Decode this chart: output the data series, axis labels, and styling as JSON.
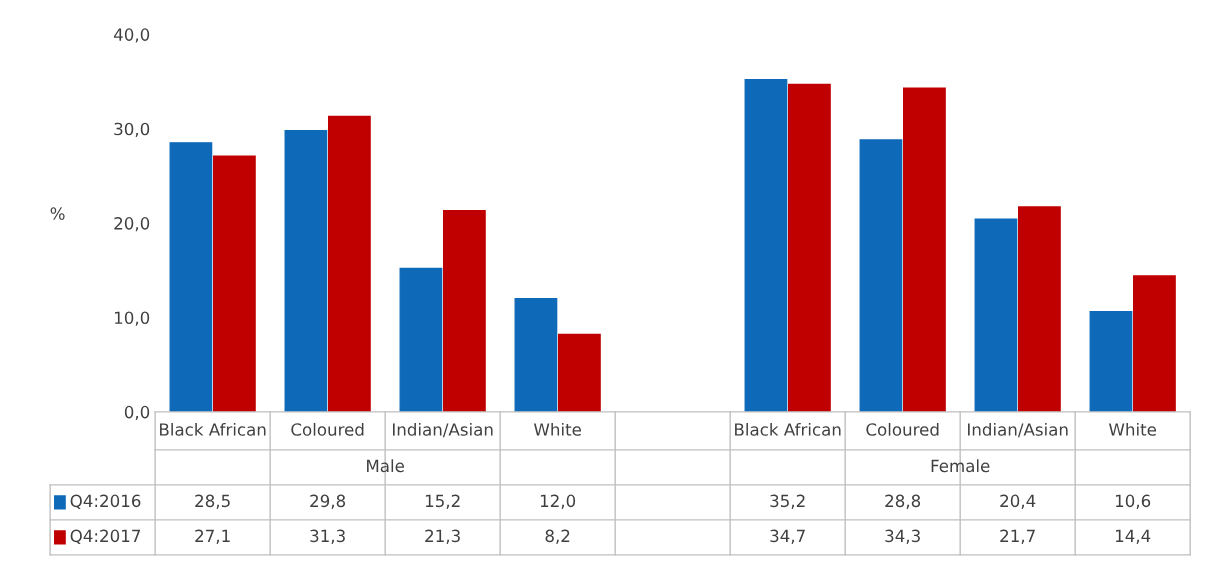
{
  "chart_data": {
    "type": "bar",
    "ylabel": "%",
    "categories": [
      "Black African",
      "Coloured",
      "Indian/Asian",
      "White",
      null,
      "Black African",
      "Coloured",
      "Indian/Asian",
      "White"
    ],
    "series": [
      {
        "name": "Q4:2016",
        "color": "#0e6ab8",
        "values": [
          28.5,
          29.8,
          15.2,
          12.0,
          null,
          35.2,
          28.8,
          20.4,
          10.6
        ],
        "value_labels": [
          "28,5",
          "29,8",
          "15,2",
          "12,0",
          null,
          "35,2",
          "28,8",
          "20,4",
          "10,6"
        ]
      },
      {
        "name": "Q4:2017",
        "color": "#c00000",
        "values": [
          27.1,
          31.3,
          21.3,
          8.2,
          null,
          34.7,
          34.3,
          21.7,
          14.4
        ],
        "value_labels": [
          "27,1",
          "31,3",
          "21,3",
          "8,2",
          null,
          "34,7",
          "34,3",
          "21,7",
          "14,4"
        ]
      }
    ],
    "annotations": [
      "Male",
      "Female"
    ],
    "ylim": [
      0,
      40
    ],
    "yticks": [
      {
        "value": 0,
        "label": "0,0"
      },
      {
        "value": 10,
        "label": "10,0"
      },
      {
        "value": 20,
        "label": "20,0"
      },
      {
        "value": 30,
        "label": "30,0"
      },
      {
        "value": 40,
        "label": "40,0"
      }
    ],
    "grid": false,
    "legend": "bottom left"
  }
}
